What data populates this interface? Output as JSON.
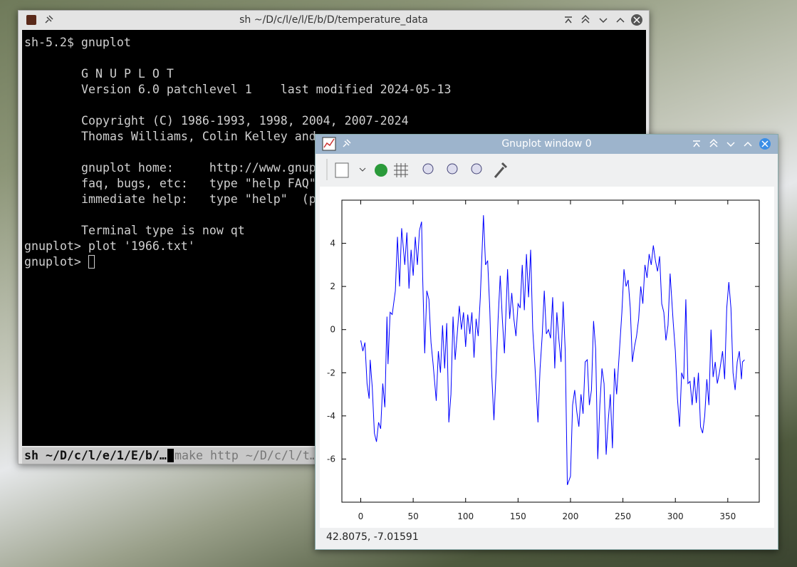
{
  "terminal": {
    "title": "sh ~/D/c/l/e/l/E/b/D/temperature_data",
    "lines": [
      "sh-5.2$ gnuplot",
      "G N U P L O T",
      "Version 6.0 patchlevel 1    last modified 2024-05-13",
      "Copyright (C) 1986-1993, 1998, 2004, 2007-2024",
      "Thomas Williams, Colin Kelley and",
      "gnuplot home:     http://www.gnup",
      "faq, bugs, etc:   type \"help FAQ\"",
      "immediate help:   type \"help\"  (p",
      "Terminal type is now qt",
      "gnuplot> plot '1966.txt'",
      "gnuplot> "
    ],
    "tabs": [
      "sh ~/D/c/l/e/1/E/b/…",
      "make http ~/D/c/l/t…"
    ]
  },
  "plot_window": {
    "title": "Gnuplot window 0",
    "status": "42.8075, -7.01591"
  },
  "chart_data": {
    "type": "line",
    "color": "#0000ff",
    "x": [
      0,
      2,
      4,
      6,
      8,
      9,
      11,
      13,
      15,
      17,
      19,
      21,
      23,
      25,
      26,
      28,
      30,
      33,
      35,
      37,
      39,
      42,
      44,
      46,
      48,
      50,
      52,
      54,
      56,
      58,
      59,
      61,
      63,
      65,
      67,
      69,
      72,
      74,
      76,
      78,
      80,
      82,
      84,
      86,
      88,
      90,
      92,
      94,
      96,
      98,
      100,
      102,
      104,
      106,
      108,
      110,
      112,
      114,
      117,
      119,
      121,
      123,
      125,
      127,
      129,
      131,
      133,
      135,
      137,
      140,
      142,
      144,
      146,
      148,
      150,
      152,
      154,
      156,
      158,
      160,
      162,
      164,
      166,
      169,
      171,
      173,
      175,
      177,
      179,
      181,
      183,
      185,
      187,
      189,
      191,
      193,
      195,
      197,
      200,
      202,
      204,
      206,
      208,
      210,
      212,
      214,
      216,
      218,
      220,
      222,
      224,
      226,
      228,
      230,
      232,
      234,
      236,
      238,
      240,
      242,
      244,
      246,
      249,
      251,
      253,
      255,
      257,
      259,
      261,
      263,
      265,
      267,
      269,
      271,
      273,
      275,
      277,
      279,
      281,
      283,
      285,
      287,
      289,
      291,
      293,
      295,
      298,
      300,
      302,
      304,
      306,
      308,
      310,
      312,
      314,
      316,
      318,
      320,
      322,
      324,
      326,
      328,
      330,
      332,
      334,
      336,
      338,
      340,
      342,
      345,
      347,
      349,
      351,
      353,
      355,
      357,
      359,
      361,
      363,
      364,
      366
    ],
    "values": [
      -0.5,
      -1.0,
      -0.6,
      -2.5,
      -3.2,
      -1.4,
      -2.7,
      -4.8,
      -5.2,
      -4.3,
      -4.6,
      -2.5,
      -3.6,
      0.6,
      -1.6,
      0.8,
      0.7,
      1.8,
      4.3,
      2.0,
      4.7,
      3.0,
      4.5,
      1.9,
      3.7,
      2.5,
      4.3,
      3.0,
      4.6,
      5.0,
      2.5,
      -1.1,
      1.8,
      1.4,
      -0.6,
      -1.6,
      -3.3,
      -1.0,
      -2.0,
      0.2,
      -1.8,
      0.3,
      -4.3,
      -3.0,
      0.6,
      -1.4,
      -0.2,
      1.1,
      0.0,
      0.8,
      -0.8,
      0.7,
      -0.2,
      0.8,
      -1.3,
      0.5,
      -0.3,
      1.5,
      5.3,
      3.0,
      3.2,
      1.0,
      -2.2,
      -4.2,
      -2.0,
      0.5,
      2.5,
      0.5,
      -1.1,
      2.8,
      0.5,
      1.7,
      0.5,
      -0.3,
      1.2,
      1.0,
      3.0,
      0.9,
      3.5,
      1.5,
      3.7,
      0.0,
      -1.6,
      -4.3,
      -1.8,
      -0.3,
      1.8,
      -0.2,
      0.0,
      -0.4,
      1.5,
      -1.8,
      0.8,
      -0.5,
      -1.5,
      1.3,
      -1.0,
      -7.2,
      -6.8,
      -3.5,
      -2.8,
      -3.8,
      -4.5,
      -3.0,
      -3.9,
      -1.5,
      -1.4,
      -3.5,
      -2.8,
      0.4,
      -0.9,
      -6.0,
      -3.5,
      -1.8,
      -2.5,
      -5.8,
      -4.2,
      -3.0,
      -5.5,
      -1.8,
      -3.0,
      -1.5,
      0.8,
      2.8,
      2.0,
      2.3,
      1.0,
      -1.5,
      -0.8,
      -0.3,
      0.5,
      2.0,
      1.2,
      3.0,
      2.4,
      3.5,
      3.0,
      3.9,
      3.2,
      2.7,
      3.4,
      1.2,
      0.8,
      -0.5,
      0.2,
      2.6,
      0.3,
      -1.0,
      -3.2,
      -4.5,
      -2.0,
      -2.3,
      1.4,
      -2.5,
      -2.4,
      -3.5,
      -2.2,
      -3.4,
      -2.0,
      -4.5,
      -4.8,
      -4.0,
      -2.3,
      -3.5,
      0.0,
      -2.2,
      -1.5,
      -2.5,
      -2.0,
      -1.0,
      -2.3,
      1.0,
      2.2,
      1.0,
      -2.0,
      -2.8,
      -1.5,
      -1.0,
      -2.3,
      -1.5,
      -1.4
    ],
    "xlim": [
      -18,
      380
    ],
    "ylim": [
      -8,
      6
    ],
    "xticks": [
      0,
      50,
      100,
      150,
      200,
      250,
      300,
      350
    ],
    "yticks": [
      -6,
      -4,
      -2,
      0,
      2,
      4
    ]
  }
}
